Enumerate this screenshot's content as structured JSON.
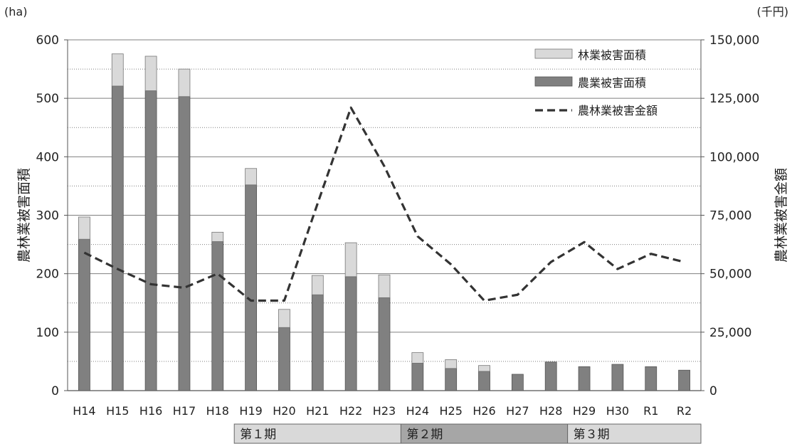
{
  "chart_data": {
    "type": "bar+line",
    "categories": [
      "H14",
      "H15",
      "H16",
      "H17",
      "H18",
      "H19",
      "H20",
      "H21",
      "H22",
      "H23",
      "H24",
      "H25",
      "H26",
      "H27",
      "H28",
      "H29",
      "H30",
      "R1",
      "R2"
    ],
    "series": [
      {
        "name": "農業被害面積",
        "type": "bar",
        "axis": "left",
        "values": [
          259,
          521,
          513,
          503,
          255,
          352,
          108,
          164,
          195,
          159,
          47,
          38,
          33,
          28,
          49,
          41,
          45,
          41,
          35
        ]
      },
      {
        "name": "林業被害面積",
        "type": "bar",
        "axis": "left",
        "stacked_on": "農業被害面積",
        "values": [
          38,
          55,
          59,
          47,
          16,
          28,
          31,
          33,
          58,
          39,
          18,
          15,
          10,
          0,
          0,
          0,
          0,
          0,
          0
        ]
      },
      {
        "name": "農林業被害金額",
        "type": "line",
        "axis": "right",
        "style": "dashed",
        "values": [
          59000,
          52000,
          45500,
          44000,
          50000,
          38500,
          38500,
          80000,
          121000,
          96000,
          66000,
          54000,
          38500,
          41000,
          55000,
          63500,
          52000,
          58500,
          55000
        ]
      }
    ],
    "left_axis": {
      "unit": "(ha)",
      "title": "農林業被害面積",
      "ylim": [
        0,
        600
      ],
      "ticks": [
        "0",
        "100",
        "200",
        "300",
        "400",
        "500",
        "600"
      ]
    },
    "right_axis": {
      "unit": "(千円)",
      "title": "農林業被害金額",
      "ylim": [
        0,
        150000
      ],
      "ticks": [
        "0",
        "25,000",
        "50,000",
        "75,000",
        "100,000",
        "125,000",
        "150,000"
      ]
    },
    "grid": {
      "major": true,
      "minor_dotted": true
    },
    "legend": {
      "placement": "top-right",
      "items": [
        {
          "label": "林業被害面積",
          "kind": "bar-light"
        },
        {
          "label": "農業被害面積",
          "kind": "bar-dark"
        },
        {
          "label": "農林業被害金額",
          "kind": "dashed-line"
        }
      ]
    },
    "periods": [
      {
        "label": "第１期",
        "from": "H19",
        "to": "H23",
        "color": "#d9d9d9"
      },
      {
        "label": "第２期",
        "from": "H24",
        "to": "H28",
        "color": "#a6a6a6"
      },
      {
        "label": "第３期",
        "from": "H29",
        "to": "R2",
        "color": "#d9d9d9"
      }
    ],
    "colors": {
      "agri_bar": "#808080",
      "forest_bar": "#d9d9d9",
      "line": "#333333",
      "grid": "#7f7f7f"
    }
  }
}
